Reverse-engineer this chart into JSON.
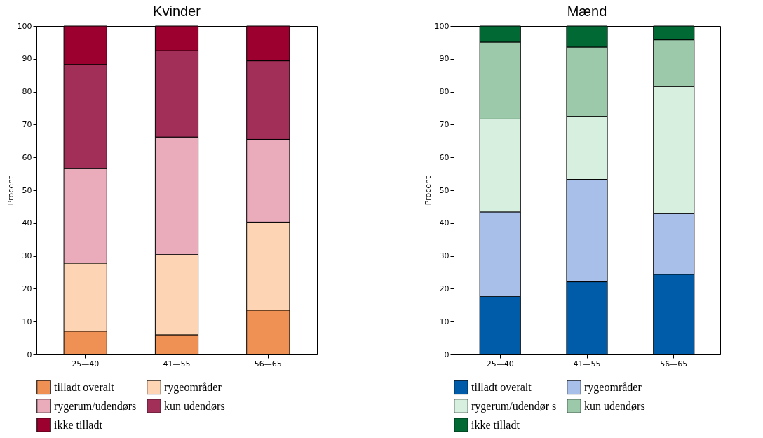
{
  "chart_data": [
    {
      "type": "bar",
      "title": "Kvinder",
      "ylabel": "Procent",
      "categories": [
        "25—40",
        "41—55",
        "56—65"
      ],
      "stacked": true,
      "ylim": [
        0,
        100
      ],
      "yticks": [
        0,
        10,
        20,
        30,
        40,
        50,
        60,
        70,
        80,
        90,
        100
      ],
      "legend": "bottom",
      "series": [
        {
          "name": "tilladt overalt",
          "color": "#ef9155",
          "values": [
            7.1,
            6.0,
            13.5
          ]
        },
        {
          "name": "rygeområder",
          "color": "#fdd5b4",
          "values": [
            20.7,
            24.4,
            26.8
          ]
        },
        {
          "name": "rygerum/udendørs",
          "color": "#eaabbb",
          "values": [
            28.8,
            35.8,
            25.2
          ]
        },
        {
          "name": "kun udendørs",
          "color": "#a12f57",
          "values": [
            31.7,
            26.3,
            23.9
          ]
        },
        {
          "name": "ikke tilladt",
          "color": "#9c002e",
          "values": [
            11.7,
            7.5,
            10.6
          ]
        }
      ]
    },
    {
      "type": "bar",
      "title": "Mænd",
      "ylabel": "Procent",
      "categories": [
        "25—40",
        "41—55",
        "56—65"
      ],
      "stacked": true,
      "ylim": [
        0,
        100
      ],
      "yticks": [
        0,
        10,
        20,
        30,
        40,
        50,
        60,
        70,
        80,
        90,
        100
      ],
      "legend": "bottom",
      "series": [
        {
          "name": "tilladt overalt",
          "color": "#005ca8",
          "values": [
            17.7,
            22.1,
            24.4
          ]
        },
        {
          "name": "rygeområder",
          "color": "#a8bfe9",
          "values": [
            25.7,
            31.2,
            18.5
          ]
        },
        {
          "name": "rygerum/udendør s",
          "color": "#d6efdf",
          "values": [
            28.3,
            19.2,
            38.7
          ]
        },
        {
          "name": "kun udendørs",
          "color": "#9bc9a9",
          "values": [
            23.4,
            21.1,
            14.2
          ]
        },
        {
          "name": "ikke tilladt",
          "color": "#006934",
          "values": [
            4.9,
            6.4,
            4.2
          ]
        }
      ]
    }
  ]
}
